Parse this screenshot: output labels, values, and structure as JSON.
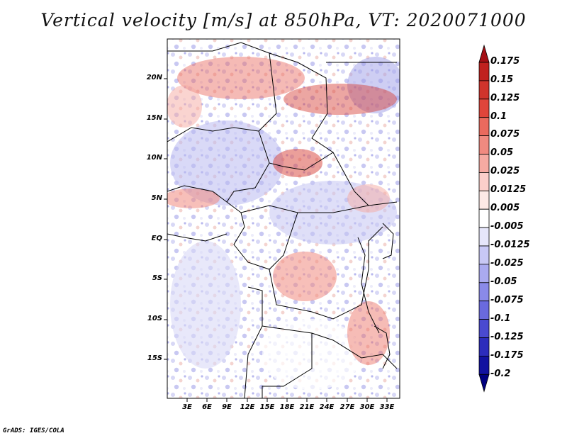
{
  "title": "Vertical velocity [m/s] at 850hPa, VT: 2020071000",
  "credit": "GrADS: IGES/COLA",
  "y_ticks": [
    "20N",
    "15N",
    "10N",
    "5N",
    "EQ",
    "5S",
    "10S",
    "15S"
  ],
  "x_ticks": [
    "3E",
    "6E",
    "9E",
    "12E",
    "15E",
    "18E",
    "21E",
    "24E",
    "27E",
    "30E",
    "33E"
  ],
  "colorbar": {
    "labels": [
      "0.175",
      "0.15",
      "0.125",
      "0.1",
      "0.075",
      "0.05",
      "0.025",
      "0.0125",
      "0.005",
      "-0.005",
      "-0.0125",
      "-0.025",
      "-0.05",
      "-0.075",
      "-0.1",
      "-0.125",
      "-0.175",
      "-0.2"
    ],
    "colors": [
      "#a50f15",
      "#c0211f",
      "#d0342c",
      "#e0453b",
      "#ea6a5e",
      "#f08a80",
      "#f5aaa2",
      "#fbcfca",
      "#fde9e6",
      "#ffffff",
      "#e6e6fa",
      "#c8c8f5",
      "#aaaaf0",
      "#8a8ae8",
      "#6a6ade",
      "#4a4ad0",
      "#2c2cbc",
      "#1212a0",
      "#000080"
    ]
  }
}
